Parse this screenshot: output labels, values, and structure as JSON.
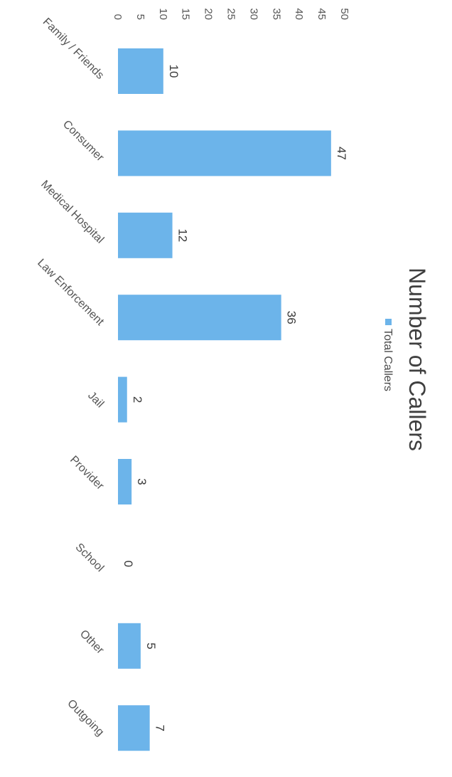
{
  "chart_data": {
    "type": "bar",
    "title": "Number of Callers",
    "categories": [
      "Family / Friends",
      "Consumer",
      "Medical Hospital",
      "Law Enforcement",
      "Jail",
      "Provider",
      "School",
      "Other",
      "Outgoing"
    ],
    "series": [
      {
        "name": "Total Callers",
        "values": [
          10,
          47,
          12,
          36,
          2,
          3,
          0,
          5,
          7
        ]
      }
    ],
    "value_axis_ticks": [
      "0",
      "5",
      "10",
      "15",
      "20",
      "25",
      "30",
      "35",
      "40",
      "45",
      "50"
    ],
    "ylim": [
      0,
      50
    ],
    "grid": false,
    "legend_position": "top",
    "orientation": "rotated-90-clockwise",
    "colors": {
      "bar": "#6cb4ea"
    }
  }
}
